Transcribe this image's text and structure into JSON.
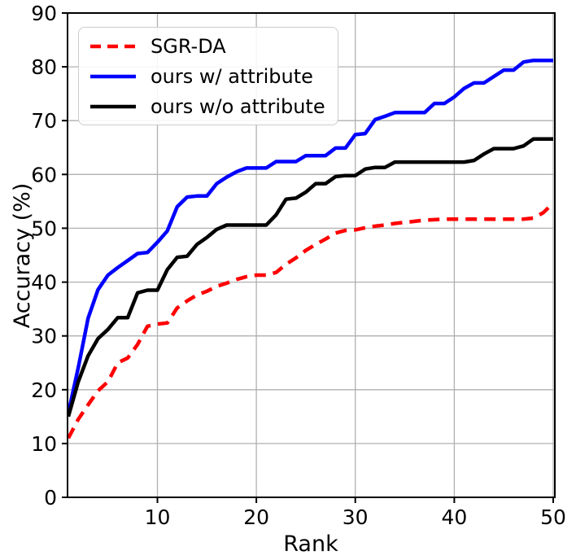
{
  "chart_data": {
    "type": "line",
    "title": "",
    "xlabel": "Rank",
    "ylabel": "Accuracy (%)",
    "xlim": [
      1,
      50
    ],
    "ylim": [
      0,
      90
    ],
    "x_ticks": [
      10,
      20,
      30,
      40,
      50
    ],
    "y_ticks": [
      0,
      10,
      20,
      30,
      40,
      50,
      60,
      70,
      80,
      90
    ],
    "grid": true,
    "grid_color": "#b0b0b0",
    "background_color": "#ffffff",
    "legend_position": "upper left",
    "x": [
      1,
      2,
      3,
      4,
      5,
      6,
      7,
      8,
      9,
      10,
      11,
      12,
      13,
      14,
      15,
      16,
      17,
      18,
      19,
      20,
      21,
      22,
      23,
      24,
      25,
      26,
      27,
      28,
      29,
      30,
      31,
      32,
      33,
      34,
      35,
      36,
      37,
      38,
      39,
      40,
      41,
      42,
      43,
      44,
      45,
      46,
      47,
      48,
      49,
      50
    ],
    "series": [
      {
        "name": "SGR-DA",
        "color": "#ff0000",
        "style": "dashed",
        "values": [
          11.0,
          14.5,
          17.2,
          19.8,
          21.5,
          25.0,
          25.9,
          28.4,
          31.8,
          32.2,
          32.4,
          35.2,
          36.5,
          37.6,
          38.3,
          39.2,
          39.8,
          40.5,
          41.0,
          41.3,
          41.3,
          41.8,
          43.3,
          44.5,
          45.9,
          47.0,
          48.0,
          49.1,
          49.6,
          49.7,
          50.1,
          50.4,
          50.6,
          50.9,
          51.1,
          51.3,
          51.5,
          51.6,
          51.7,
          51.7,
          51.7,
          51.7,
          51.7,
          51.7,
          51.7,
          51.7,
          51.7,
          51.9,
          52.9,
          54.7
        ]
      },
      {
        "name": "ours w/ attribute",
        "color": "#0000ff",
        "style": "solid",
        "values": [
          15.7,
          24.1,
          33.3,
          38.6,
          41.3,
          42.7,
          44.0,
          45.3,
          45.5,
          47.4,
          49.5,
          54.0,
          55.8,
          56.0,
          56.0,
          58.3,
          59.5,
          60.5,
          61.2,
          61.2,
          61.2,
          62.4,
          62.4,
          62.4,
          63.5,
          63.5,
          63.5,
          64.9,
          64.9,
          67.4,
          67.6,
          70.2,
          70.8,
          71.5,
          71.5,
          71.5,
          71.5,
          73.2,
          73.2,
          74.4,
          76.0,
          77.0,
          77.0,
          78.2,
          79.4,
          79.4,
          80.9,
          81.2,
          81.2,
          81.2
        ]
      },
      {
        "name": "ours w/o attribute",
        "color": "#000000",
        "style": "solid",
        "values": [
          15.0,
          21.5,
          26.3,
          29.5,
          31.2,
          33.4,
          33.4,
          38.0,
          38.5,
          38.5,
          42.3,
          44.6,
          44.8,
          47.0,
          48.3,
          49.8,
          50.6,
          50.6,
          50.6,
          50.6,
          50.6,
          52.5,
          55.4,
          55.6,
          56.7,
          58.3,
          58.3,
          59.6,
          59.8,
          59.8,
          61.0,
          61.3,
          61.3,
          62.3,
          62.3,
          62.3,
          62.3,
          62.3,
          62.3,
          62.3,
          62.3,
          62.6,
          63.8,
          64.8,
          64.8,
          64.8,
          65.3,
          66.6,
          66.6,
          66.6
        ]
      }
    ]
  }
}
